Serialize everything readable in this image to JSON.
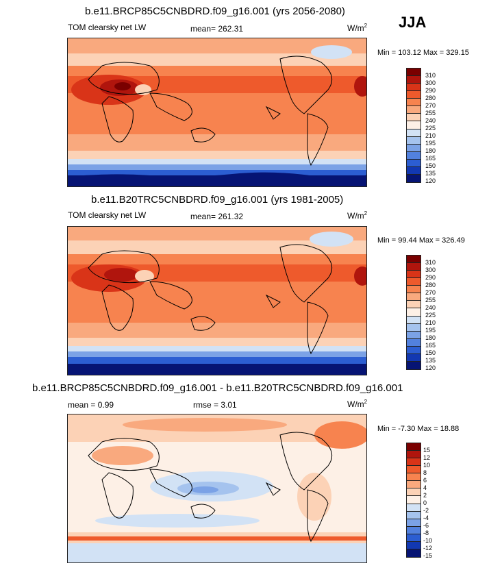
{
  "season": "JJA",
  "panels": [
    {
      "title": "b.e11.BRCP85C5CNBDRD.f09_g16.001 (yrs 2056-2080)",
      "variable": "TOM clearsky net LW",
      "mean": "mean= 262.31",
      "unit_base": "W/m",
      "unit_exp": "2",
      "minmax": "Min = 103.12 Max = 329.15",
      "levels": [
        "310",
        "300",
        "290",
        "280",
        "270",
        "255",
        "240",
        "225",
        "210",
        "195",
        "180",
        "165",
        "150",
        "135",
        "120"
      ],
      "colors": [
        "#7a0000",
        "#b0150d",
        "#d93418",
        "#ee5a2c",
        "#f7834f",
        "#f9a97e",
        "#fcd2b6",
        "#fdf0e6",
        "#d2e2f5",
        "#a5c3ee",
        "#7ba2e6",
        "#5281de",
        "#2c5ed2",
        "#1238b2",
        "#061474"
      ]
    },
    {
      "title": "b.e11.B20TRC5CNBDRD.f09_g16.001 (yrs 1981-2005)",
      "variable": "TOM clearsky net LW",
      "mean": "mean= 261.32",
      "unit_base": "W/m",
      "unit_exp": "2",
      "minmax": "Min =  99.44 Max = 326.49",
      "levels": [
        "310",
        "300",
        "290",
        "280",
        "270",
        "255",
        "240",
        "225",
        "210",
        "195",
        "180",
        "165",
        "150",
        "135",
        "120"
      ],
      "colors": [
        "#7a0000",
        "#b0150d",
        "#d93418",
        "#ee5a2c",
        "#f7834f",
        "#f9a97e",
        "#fcd2b6",
        "#fdf0e6",
        "#d2e2f5",
        "#a5c3ee",
        "#7ba2e6",
        "#5281de",
        "#2c5ed2",
        "#1238b2",
        "#061474"
      ]
    },
    {
      "title": "b.e11.BRCP85C5CNBDRD.f09_g16.001 - b.e11.B20TRC5CNBDRD.f09_g16.001",
      "mean": "mean =   0.99",
      "rmse": "rmse =   3.01",
      "unit_base": "W/m",
      "unit_exp": "2",
      "minmax": "Min =  -7.30 Max =  18.88",
      "levels": [
        "15",
        "12",
        "10",
        "8",
        "6",
        "4",
        "2",
        "0",
        "-2",
        "-4",
        "-6",
        "-8",
        "-10",
        "-12",
        "-15"
      ],
      "colors": [
        "#7a0000",
        "#b0150d",
        "#d93418",
        "#ee5a2c",
        "#f7834f",
        "#f9a97e",
        "#fcd2b6",
        "#fdf0e6",
        "#d2e2f5",
        "#a5c3ee",
        "#7ba2e6",
        "#5281de",
        "#2c5ed2",
        "#1238b2",
        "#061474"
      ]
    }
  ]
}
